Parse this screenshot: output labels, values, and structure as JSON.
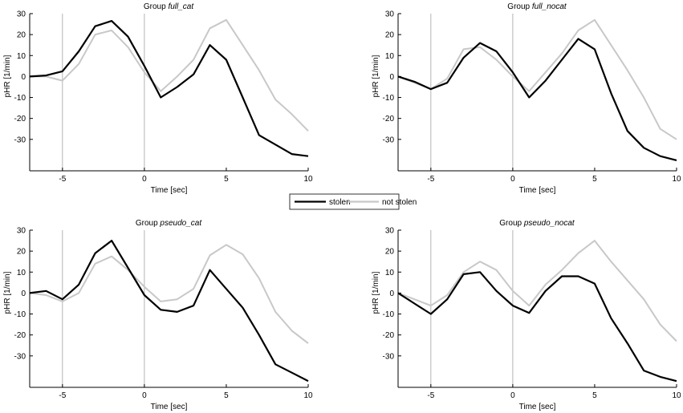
{
  "chart_data": [
    {
      "type": "line",
      "title_prefix": "Group ",
      "title_group": "full_cat",
      "xlabel": "Time [sec]",
      "ylabel": "pHR [1/min]",
      "xlim": [
        -7,
        10
      ],
      "ylim": [
        -45,
        30
      ],
      "xticks": [
        -5,
        0,
        5,
        10
      ],
      "yticks": [
        30,
        20,
        10,
        0,
        -10,
        -20,
        -30
      ],
      "vlines": [
        -5,
        0
      ],
      "x": [
        -7,
        -6,
        -5,
        -4,
        -3,
        -2,
        -1,
        0,
        1,
        2,
        3,
        4,
        5,
        6,
        7,
        8,
        9,
        10
      ],
      "series": [
        {
          "name": "stolen",
          "values": [
            0,
            0.5,
            2.5,
            12,
            24,
            26.5,
            19,
            5,
            -10,
            -5,
            1,
            15,
            8,
            -10,
            -28,
            -32.5,
            -37,
            -38
          ]
        },
        {
          "name": "not stolen",
          "values": [
            0,
            0,
            -2,
            6,
            20,
            22,
            14,
            2,
            -7,
            0,
            8,
            23,
            27,
            15,
            3,
            -11,
            -18,
            -26
          ]
        }
      ]
    },
    {
      "type": "line",
      "title_prefix": "Group ",
      "title_group": "full_nocat",
      "xlabel": "Time [sec]",
      "ylabel": "pHR [1/min]",
      "xlim": [
        -7,
        10
      ],
      "ylim": [
        -45,
        30
      ],
      "xticks": [
        -5,
        0,
        5,
        10
      ],
      "yticks": [
        30,
        20,
        10,
        0,
        -10,
        -20,
        -30
      ],
      "vlines": [
        -5,
        0
      ],
      "x": [
        -7,
        -6,
        -5,
        -4,
        -3,
        -2,
        -1,
        0,
        1,
        2,
        3,
        4,
        5,
        6,
        7,
        8,
        9,
        10
      ],
      "series": [
        {
          "name": "stolen",
          "values": [
            0,
            -2.5,
            -6,
            -3,
            9,
            16,
            12,
            2,
            -10,
            -2,
            8,
            18,
            13,
            -8,
            -26,
            -34,
            -38,
            -40
          ]
        },
        {
          "name": "not stolen",
          "values": [
            0,
            -3,
            -6,
            -1,
            13,
            14,
            8,
            0,
            -7,
            2,
            11,
            22,
            27,
            15,
            3,
            -10,
            -25,
            -30
          ]
        }
      ]
    },
    {
      "type": "line",
      "title_prefix": "Group ",
      "title_group": "pseudo_cat",
      "xlabel": "Time [sec]",
      "ylabel": "pHR [1/min]",
      "xlim": [
        -7,
        10
      ],
      "ylim": [
        -45,
        30
      ],
      "xticks": [
        -5,
        0,
        5,
        10
      ],
      "yticks": [
        30,
        20,
        10,
        0,
        -10,
        -20,
        -30
      ],
      "vlines": [
        -5,
        0
      ],
      "x": [
        -7,
        -6,
        -5,
        -4,
        -3,
        -2,
        -1,
        0,
        1,
        2,
        3,
        4,
        5,
        6,
        7,
        8,
        9,
        10
      ],
      "series": [
        {
          "name": "stolen",
          "values": [
            0,
            1,
            -3,
            4,
            19,
            25,
            12,
            -1,
            -8,
            -9,
            -6,
            11,
            2,
            -7,
            -20,
            -34,
            -38,
            -42
          ]
        },
        {
          "name": "not stolen",
          "values": [
            0,
            -1,
            -4,
            0,
            14,
            17.5,
            11,
            3,
            -4,
            -3,
            2,
            18,
            23,
            18.5,
            7,
            -9,
            -18,
            -24
          ]
        }
      ]
    },
    {
      "type": "line",
      "title_prefix": "Group ",
      "title_group": "pseudo_nocat",
      "xlabel": "Time [sec]",
      "ylabel": "pHR [1/min]",
      "xlim": [
        -7,
        10
      ],
      "ylim": [
        -45,
        30
      ],
      "xticks": [
        -5,
        0,
        5,
        10
      ],
      "yticks": [
        30,
        20,
        10,
        0,
        -10,
        -20,
        -30
      ],
      "vlines": [
        -5,
        0
      ],
      "x": [
        -7,
        -6,
        -5,
        -4,
        -3,
        -2,
        -1,
        0,
        1,
        2,
        3,
        4,
        5,
        6,
        7,
        8,
        9,
        10
      ],
      "series": [
        {
          "name": "stolen",
          "values": [
            0,
            -5,
            -10,
            -3,
            9,
            10,
            1,
            -6,
            -9.5,
            1,
            8,
            8,
            4.5,
            -12,
            -24,
            -37,
            -40,
            -42
          ]
        },
        {
          "name": "not stolen",
          "values": [
            0,
            -3,
            -6,
            -1,
            10,
            15,
            11,
            1,
            -6,
            4,
            11,
            19,
            25,
            15,
            6,
            -3,
            -15,
            -23
          ]
        }
      ]
    }
  ],
  "legend": {
    "entries": [
      {
        "label": "stolen",
        "color": "#000000"
      },
      {
        "label": "not stolen",
        "color": "#c8c8c8"
      }
    ]
  },
  "colors": {
    "stolen": "#000000",
    "not_stolen": "#c8c8c8",
    "vline": "#b4b4b4",
    "axis": "#000000"
  }
}
